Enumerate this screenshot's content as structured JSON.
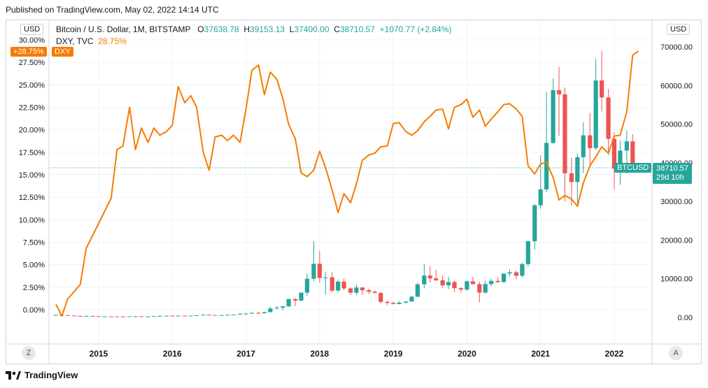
{
  "header": {
    "published": "Published on TradingView.com, May 02, 2022 14:14 UTC"
  },
  "left_scale": {
    "currency": "USD"
  },
  "right_scale": {
    "currency": "USD"
  },
  "legend": {
    "symbol": "Bitcoin / U.S. Dollar, 1M, BITSTAMP",
    "o_label": "O",
    "o": "37638.78",
    "h_label": "H",
    "h": "39153.13",
    "l_label": "L",
    "l": "37400.00",
    "c_label": "C",
    "c": "38710.57",
    "change": "+1070.77 (+2.84%)",
    "compare_symbol": "DXY, TVC",
    "compare_value": "28.75%"
  },
  "badges": {
    "left_value": "+28.75%",
    "left_symbol": "DXY",
    "right_symbol": "BTCUSD",
    "right_price": "38710.57",
    "right_countdown": "29d 10h"
  },
  "buttons": {
    "timezone": "Z",
    "auto_scale": "A"
  },
  "footer": {
    "brand": "TradingView"
  },
  "colors": {
    "up": "#26a69a",
    "down": "#ef5350",
    "dxy": "#f57c00"
  },
  "chart_data": {
    "type": "candlestick_with_line_overlay",
    "x_ticks": [
      "2015",
      "2016",
      "2017",
      "2018",
      "2019",
      "2020",
      "2021",
      "2022"
    ],
    "left_axis": {
      "ticks": [
        "30.00%",
        "27.50%",
        "25.00%",
        "22.50%",
        "20.00%",
        "17.50%",
        "15.00%",
        "12.50%",
        "10.00%",
        "7.50%",
        "5.00%",
        "2.50%",
        "0.00%"
      ],
      "range": [
        -1,
        30.5
      ]
    },
    "right_axis": {
      "ticks": [
        "70000.00",
        "60000.00",
        "50000.00",
        "40000.00",
        "30000.00",
        "20000.00",
        "10000.00",
        "0.00"
      ],
      "range": [
        -1300,
        70500
      ]
    },
    "dxy_series": {
      "name": "DXY, TVC",
      "points": [
        [
          2014.42,
          0.6
        ],
        [
          2014.5,
          -0.7
        ],
        [
          2014.58,
          1.2
        ],
        [
          2014.75,
          2.8
        ],
        [
          2014.83,
          6.8
        ],
        [
          2015.0,
          9.6
        ],
        [
          2015.17,
          12.4
        ],
        [
          2015.25,
          17.8
        ],
        [
          2015.33,
          18.2
        ],
        [
          2015.42,
          22.5
        ],
        [
          2015.5,
          17.8
        ],
        [
          2015.58,
          20.2
        ],
        [
          2015.67,
          18.6
        ],
        [
          2015.75,
          20.2
        ],
        [
          2015.83,
          19.4
        ],
        [
          2015.92,
          19.8
        ],
        [
          2016.0,
          20.5
        ],
        [
          2016.08,
          24.8
        ],
        [
          2016.17,
          23.0
        ],
        [
          2016.25,
          23.8
        ],
        [
          2016.33,
          22.5
        ],
        [
          2016.42,
          17.5
        ],
        [
          2016.5,
          15.5
        ],
        [
          2016.58,
          19.2
        ],
        [
          2016.67,
          19.4
        ],
        [
          2016.75,
          18.8
        ],
        [
          2016.83,
          19.4
        ],
        [
          2016.92,
          18.6
        ],
        [
          2017.0,
          22.3
        ],
        [
          2017.08,
          26.6
        ],
        [
          2017.17,
          27.2
        ],
        [
          2017.25,
          23.9
        ],
        [
          2017.33,
          26.4
        ],
        [
          2017.42,
          25.6
        ],
        [
          2017.5,
          23.5
        ],
        [
          2017.58,
          20.6
        ],
        [
          2017.67,
          19.0
        ],
        [
          2017.75,
          15.2
        ],
        [
          2017.83,
          14.8
        ],
        [
          2017.92,
          15.5
        ],
        [
          2018.0,
          17.6
        ],
        [
          2018.08,
          15.8
        ],
        [
          2018.17,
          13.3
        ],
        [
          2018.25,
          10.8
        ],
        [
          2018.33,
          12.9
        ],
        [
          2018.42,
          11.9
        ],
        [
          2018.5,
          14.0
        ],
        [
          2018.58,
          16.6
        ],
        [
          2018.67,
          17.2
        ],
        [
          2018.75,
          17.4
        ],
        [
          2018.83,
          18.1
        ],
        [
          2018.92,
          18.2
        ],
        [
          2019.0,
          20.7
        ],
        [
          2019.08,
          20.8
        ],
        [
          2019.17,
          19.8
        ],
        [
          2019.25,
          19.4
        ],
        [
          2019.33,
          19.9
        ],
        [
          2019.42,
          20.9
        ],
        [
          2019.5,
          21.5
        ],
        [
          2019.58,
          22.2
        ],
        [
          2019.67,
          22.3
        ],
        [
          2019.75,
          20.1
        ],
        [
          2019.83,
          22.5
        ],
        [
          2019.92,
          22.8
        ],
        [
          2020.0,
          23.4
        ],
        [
          2020.08,
          21.4
        ],
        [
          2020.17,
          22.2
        ],
        [
          2020.25,
          20.4
        ],
        [
          2020.33,
          21.2
        ],
        [
          2020.42,
          22.0
        ],
        [
          2020.5,
          22.8
        ],
        [
          2020.58,
          22.9
        ],
        [
          2020.67,
          22.3
        ],
        [
          2020.75,
          21.5
        ],
        [
          2020.83,
          16.0
        ],
        [
          2020.92,
          15.1
        ],
        [
          2021.0,
          16.2
        ],
        [
          2021.08,
          16.4
        ],
        [
          2021.17,
          14.7
        ],
        [
          2021.25,
          12.2
        ],
        [
          2021.33,
          12.7
        ],
        [
          2021.42,
          12.3
        ],
        [
          2021.5,
          11.5
        ],
        [
          2021.58,
          14.1
        ],
        [
          2021.67,
          16.0
        ],
        [
          2021.75,
          17.0
        ],
        [
          2021.83,
          18.1
        ],
        [
          2021.92,
          17.4
        ],
        [
          2022.0,
          19.3
        ],
        [
          2022.08,
          19.4
        ],
        [
          2022.17,
          22.0
        ],
        [
          2022.25,
          28.3
        ],
        [
          2022.33,
          28.75
        ]
      ]
    },
    "btc_candles_ohlc": [
      [
        2014.42,
        630,
        680,
        520,
        640
      ],
      [
        2014.5,
        640,
        650,
        560,
        580
      ],
      [
        2014.58,
        580,
        600,
        440,
        480
      ],
      [
        2014.67,
        480,
        500,
        380,
        390
      ],
      [
        2014.75,
        390,
        420,
        290,
        340
      ],
      [
        2014.83,
        340,
        400,
        330,
        380
      ],
      [
        2014.92,
        380,
        390,
        300,
        320
      ],
      [
        2015.0,
        320,
        330,
        160,
        215
      ],
      [
        2015.08,
        215,
        260,
        200,
        250
      ],
      [
        2015.17,
        250,
        300,
        240,
        245
      ],
      [
        2015.25,
        245,
        260,
        210,
        235
      ],
      [
        2015.33,
        235,
        250,
        220,
        230
      ],
      [
        2015.42,
        230,
        270,
        210,
        265
      ],
      [
        2015.5,
        265,
        320,
        250,
        285
      ],
      [
        2015.58,
        285,
        290,
        195,
        230
      ],
      [
        2015.67,
        230,
        260,
        220,
        237
      ],
      [
        2015.75,
        237,
        320,
        235,
        315
      ],
      [
        2015.83,
        315,
        500,
        300,
        378
      ],
      [
        2015.92,
        378,
        470,
        350,
        430
      ],
      [
        2016.0,
        430,
        450,
        350,
        370
      ],
      [
        2016.08,
        370,
        450,
        365,
        437
      ],
      [
        2016.17,
        437,
        440,
        400,
        416
      ],
      [
        2016.25,
        416,
        470,
        410,
        448
      ],
      [
        2016.33,
        448,
        550,
        440,
        530
      ],
      [
        2016.42,
        530,
        780,
        520,
        670
      ],
      [
        2016.5,
        670,
        700,
        600,
        620
      ],
      [
        2016.58,
        620,
        630,
        530,
        575
      ],
      [
        2016.67,
        575,
        620,
        570,
        610
      ],
      [
        2016.75,
        610,
        720,
        600,
        700
      ],
      [
        2016.83,
        700,
        760,
        690,
        740
      ],
      [
        2016.92,
        740,
        980,
        740,
        963
      ],
      [
        2017.0,
        963,
        1150,
        750,
        970
      ],
      [
        2017.08,
        970,
        1200,
        920,
        1190
      ],
      [
        2017.17,
        1190,
        1350,
        900,
        1080
      ],
      [
        2017.25,
        1080,
        1500,
        1060,
        1350
      ],
      [
        2017.33,
        1350,
        2700,
        1340,
        2300
      ],
      [
        2017.42,
        2300,
        3000,
        2100,
        2500
      ],
      [
        2017.5,
        2500,
        2950,
        1800,
        2850
      ],
      [
        2017.58,
        2850,
        4800,
        2700,
        4750
      ],
      [
        2017.67,
        4750,
        5000,
        2900,
        4350
      ],
      [
        2017.75,
        4350,
        6400,
        4100,
        6400
      ],
      [
        2017.83,
        6400,
        11400,
        5500,
        10000
      ],
      [
        2017.92,
        10000,
        19700,
        9400,
        13860
      ],
      [
        2018.0,
        13860,
        17200,
        9000,
        10220
      ],
      [
        2018.08,
        10220,
        11800,
        5900,
        10350
      ],
      [
        2018.17,
        10350,
        11700,
        6500,
        6930
      ],
      [
        2018.25,
        6930,
        9800,
        6430,
        9250
      ],
      [
        2018.33,
        9250,
        10000,
        7000,
        7500
      ],
      [
        2018.42,
        7500,
        7800,
        5800,
        6400
      ],
      [
        2018.5,
        6400,
        8500,
        5800,
        7730
      ],
      [
        2018.58,
        7730,
        7800,
        5900,
        7030
      ],
      [
        2018.67,
        7030,
        7400,
        6100,
        6620
      ],
      [
        2018.75,
        6620,
        7000,
        6200,
        6320
      ],
      [
        2018.83,
        6320,
        6600,
        3600,
        4020
      ],
      [
        2018.92,
        4020,
        4300,
        3150,
        3740
      ],
      [
        2019.0,
        3740,
        4100,
        3350,
        3460
      ],
      [
        2019.08,
        3460,
        4200,
        3400,
        3820
      ],
      [
        2019.17,
        3820,
        4150,
        3680,
        4100
      ],
      [
        2019.25,
        4100,
        5600,
        4070,
        5350
      ],
      [
        2019.33,
        5350,
        9000,
        5300,
        8550
      ],
      [
        2019.42,
        8550,
        13800,
        7500,
        10820
      ],
      [
        2019.5,
        10820,
        13200,
        9000,
        10090
      ],
      [
        2019.58,
        10090,
        12300,
        9400,
        9600
      ],
      [
        2019.67,
        9600,
        10900,
        7700,
        8300
      ],
      [
        2019.75,
        8300,
        10500,
        7300,
        9150
      ],
      [
        2019.83,
        9150,
        9500,
        6500,
        7560
      ],
      [
        2019.92,
        7560,
        7800,
        6400,
        7200
      ],
      [
        2020.0,
        7200,
        9600,
        6850,
        9350
      ],
      [
        2020.08,
        9350,
        10500,
        8500,
        8600
      ],
      [
        2020.17,
        8600,
        9200,
        3850,
        6420
      ],
      [
        2020.25,
        6420,
        9500,
        6150,
        8630
      ],
      [
        2020.33,
        8630,
        10000,
        8100,
        9450
      ],
      [
        2020.42,
        9450,
        10400,
        8900,
        9150
      ],
      [
        2020.5,
        9150,
        11400,
        8950,
        11340
      ],
      [
        2020.58,
        11340,
        12480,
        10600,
        11660
      ],
      [
        2020.67,
        11660,
        12100,
        9850,
        10780
      ],
      [
        2020.75,
        10780,
        14100,
        10400,
        13800
      ],
      [
        2020.83,
        13800,
        19900,
        13200,
        19700
      ],
      [
        2020.92,
        19700,
        29300,
        17600,
        28990
      ],
      [
        2021.0,
        28990,
        41900,
        28100,
        33110
      ],
      [
        2021.08,
        33110,
        58300,
        32300,
        45140
      ],
      [
        2021.17,
        45140,
        61800,
        44900,
        58790
      ],
      [
        2021.25,
        58790,
        64800,
        47000,
        57720
      ],
      [
        2021.33,
        57720,
        59500,
        30000,
        37280
      ],
      [
        2021.42,
        37280,
        41300,
        28900,
        35030
      ],
      [
        2021.5,
        35030,
        42400,
        29300,
        41460
      ],
      [
        2021.58,
        41460,
        50500,
        37400,
        47100
      ],
      [
        2021.67,
        47100,
        52900,
        39600,
        43790
      ],
      [
        2021.75,
        43790,
        66900,
        43300,
        61300
      ],
      [
        2021.83,
        61300,
        69000,
        53300,
        56900
      ],
      [
        2021.92,
        56900,
        59100,
        42000,
        46200
      ],
      [
        2022.0,
        46200,
        47900,
        33000,
        38480
      ],
      [
        2022.08,
        38480,
        45800,
        34300,
        43160
      ],
      [
        2022.17,
        43160,
        48200,
        37200,
        45530
      ],
      [
        2022.25,
        45530,
        47400,
        37600,
        37640
      ],
      [
        2022.33,
        37638.78,
        39153.13,
        37400,
        38710.57
      ]
    ],
    "current_price": 38710.57
  }
}
